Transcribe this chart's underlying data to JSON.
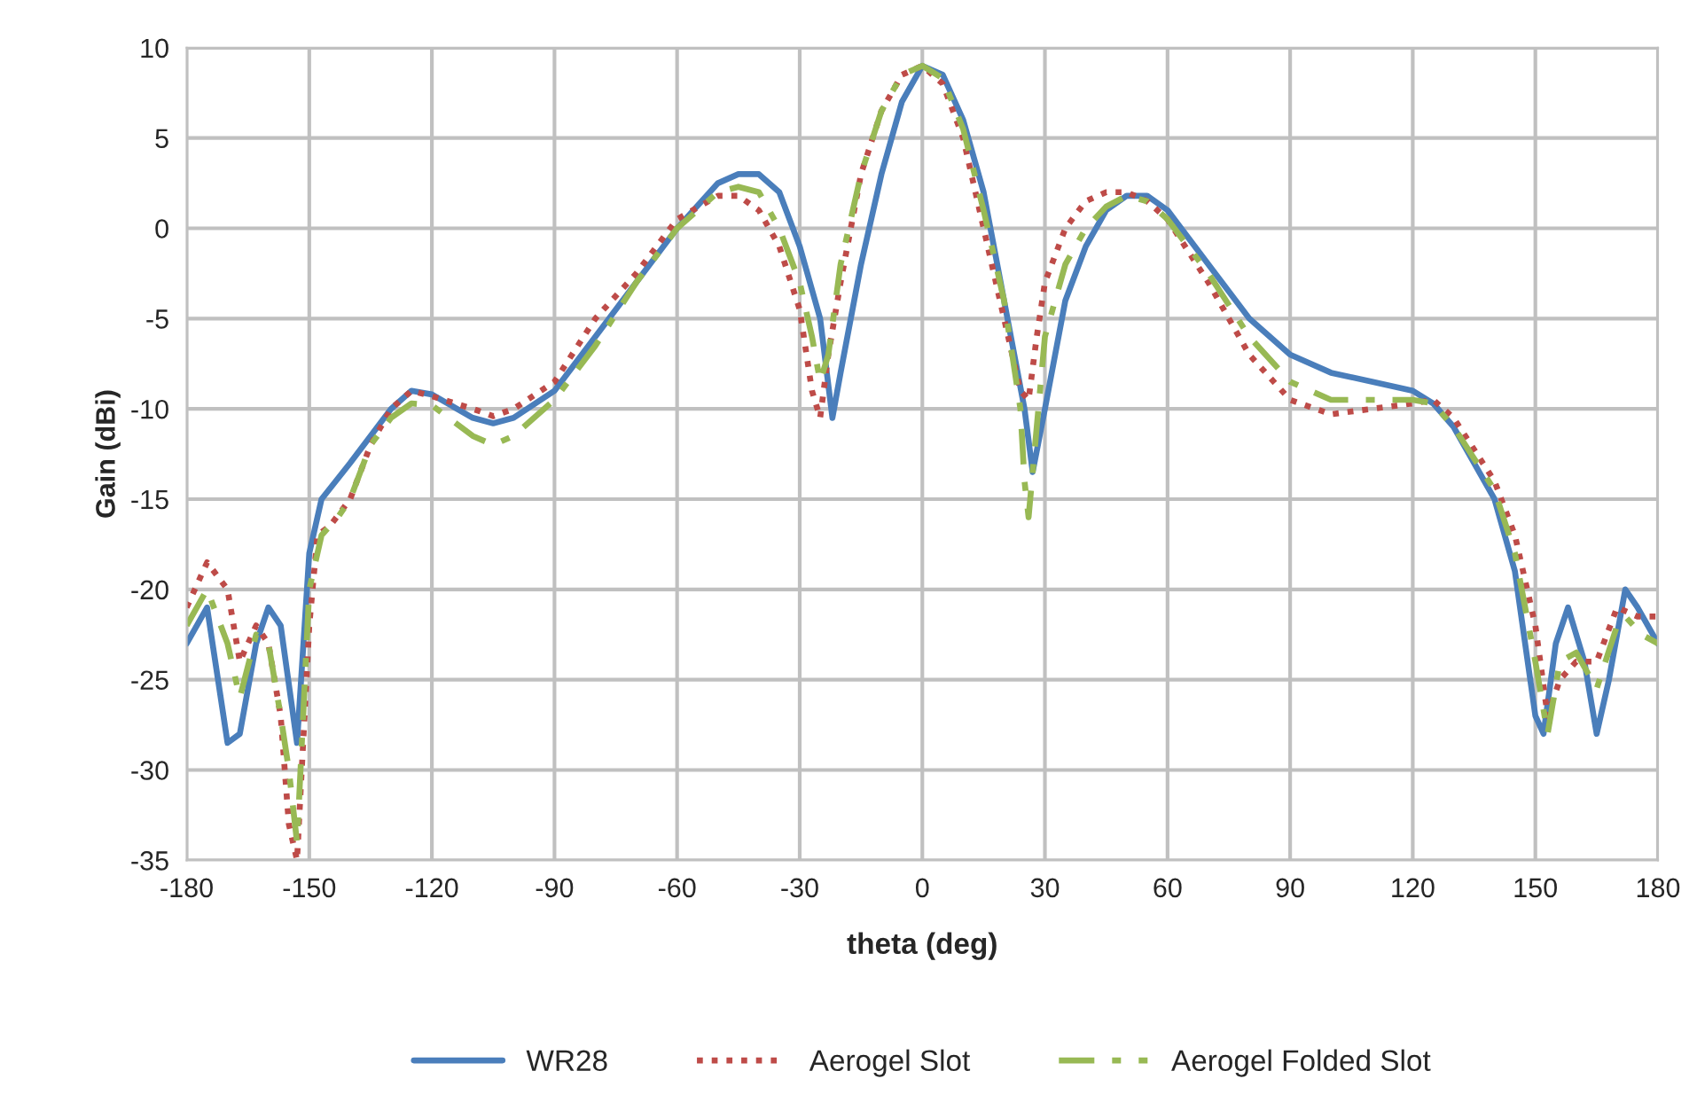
{
  "chart_data": {
    "type": "line",
    "xlabel": "theta (deg)",
    "ylabel": "Gain (dBi)",
    "xlim": [
      -180,
      180
    ],
    "xticks": [
      -180,
      -150,
      -120,
      -90,
      -60,
      -30,
      0,
      30,
      60,
      90,
      120,
      150,
      180
    ],
    "ylim": [
      -35,
      10
    ],
    "yticks": [
      -35,
      -30,
      -25,
      -20,
      -15,
      -10,
      -5,
      0,
      5,
      10
    ],
    "grid": true,
    "legend": "bottom",
    "marker": "none",
    "series": [
      {
        "name": "WR28",
        "color": "#4a7ebb",
        "line_style": "solid",
        "x": [
          -180,
          -175,
          -170,
          -167,
          -163,
          -160,
          -157,
          -153,
          -150,
          -147,
          -140,
          -135,
          -130,
          -125,
          -120,
          -110,
          -105,
          -100,
          -90,
          -80,
          -70,
          -60,
          -50,
          -45,
          -40,
          -35,
          -30,
          -25,
          -22,
          -20,
          -15,
          -10,
          -5,
          0,
          5,
          10,
          15,
          20,
          25,
          27,
          30,
          35,
          40,
          45,
          50,
          55,
          60,
          70,
          80,
          90,
          100,
          110,
          120,
          125,
          130,
          140,
          145,
          150,
          152,
          155,
          158,
          162,
          165,
          168,
          172,
          175,
          180
        ],
        "values": [
          -23,
          -21,
          -28.5,
          -28,
          -23,
          -21,
          -22,
          -28.5,
          -18,
          -15,
          -13,
          -11.5,
          -10,
          -9,
          -9.2,
          -10.5,
          -10.8,
          -10.5,
          -9,
          -6,
          -3,
          0,
          2.5,
          3,
          3,
          2,
          -1,
          -5,
          -10.5,
          -8,
          -2,
          3,
          7,
          9,
          8.5,
          6,
          2,
          -4,
          -10,
          -13.5,
          -10,
          -4,
          -1,
          1,
          1.8,
          1.8,
          1,
          -2,
          -5,
          -7,
          -8,
          -8.5,
          -9,
          -9.7,
          -11,
          -15,
          -19,
          -27,
          -28,
          -23,
          -21,
          -24,
          -28,
          -25,
          -20,
          -21,
          -23
        ]
      },
      {
        "name": "Aerogel Slot",
        "color": "#be4b48",
        "line_style": "dotted",
        "x": [
          -180,
          -175,
          -170,
          -167,
          -163,
          -160,
          -157,
          -155,
          -153,
          -150,
          -148,
          -145,
          -140,
          -135,
          -130,
          -125,
          -120,
          -110,
          -105,
          -100,
          -90,
          -80,
          -70,
          -60,
          -50,
          -45,
          -40,
          -35,
          -30,
          -27,
          -25,
          -23,
          -20,
          -15,
          -10,
          -5,
          0,
          5,
          10,
          15,
          20,
          24,
          26,
          28,
          30,
          35,
          40,
          45,
          50,
          55,
          60,
          70,
          80,
          90,
          100,
          110,
          120,
          125,
          130,
          140,
          145,
          150,
          153,
          156,
          160,
          165,
          170,
          175,
          180
        ],
        "values": [
          -21,
          -18.5,
          -20,
          -24,
          -22,
          -23,
          -27,
          -33,
          -35,
          -22,
          -17,
          -16.5,
          -15,
          -12,
          -10,
          -9,
          -9.3,
          -10,
          -10.4,
          -10,
          -8.5,
          -5,
          -2.5,
          0.5,
          1.8,
          1.8,
          1,
          -1,
          -4.5,
          -9,
          -10.5,
          -7,
          -3,
          3,
          6.5,
          8.5,
          9,
          8,
          5,
          0,
          -5,
          -9,
          -9.5,
          -6,
          -3,
          0,
          1.5,
          2,
          2,
          1.5,
          0.5,
          -3,
          -7,
          -9.5,
          -10.3,
          -10,
          -9.7,
          -9.5,
          -10.5,
          -14,
          -17,
          -22,
          -27,
          -25,
          -24,
          -24,
          -21,
          -21.5,
          -21.5
        ]
      },
      {
        "name": "Aerogel Folded Slot",
        "color": "#98b954",
        "line_style": "dashed",
        "x": [
          -180,
          -175,
          -170,
          -167,
          -163,
          -160,
          -157,
          -155,
          -153,
          -150,
          -147,
          -143,
          -140,
          -135,
          -130,
          -125,
          -120,
          -110,
          -105,
          -100,
          -90,
          -80,
          -70,
          -60,
          -50,
          -45,
          -40,
          -35,
          -30,
          -27,
          -25,
          -23,
          -20,
          -15,
          -10,
          -5,
          0,
          5,
          10,
          15,
          20,
          24,
          25,
          26,
          28,
          30,
          35,
          40,
          45,
          50,
          55,
          60,
          70,
          80,
          90,
          100,
          110,
          120,
          125,
          130,
          140,
          145,
          150,
          153,
          156,
          160,
          165,
          170,
          172,
          176,
          180
        ],
        "values": [
          -22,
          -20,
          -23,
          -26,
          -22.5,
          -23,
          -27,
          -30,
          -34,
          -20,
          -17,
          -16,
          -15,
          -12,
          -10.5,
          -9.7,
          -9.8,
          -11.5,
          -12,
          -11.5,
          -9.5,
          -6.5,
          -3,
          0,
          2,
          2.3,
          2,
          0,
          -3,
          -6,
          -8.5,
          -7,
          -2,
          3,
          6.5,
          8.5,
          9,
          8.3,
          5.5,
          1,
          -4,
          -10,
          -14,
          -16,
          -11,
          -6,
          -2,
          0,
          1.2,
          1.8,
          1.5,
          0.5,
          -2.5,
          -6,
          -8.5,
          -9.5,
          -9.5,
          -9.5,
          -9.7,
          -11,
          -14.5,
          -18,
          -24,
          -28,
          -24,
          -23.5,
          -25.5,
          -22,
          -21.5,
          -22.5,
          -23
        ]
      }
    ]
  }
}
